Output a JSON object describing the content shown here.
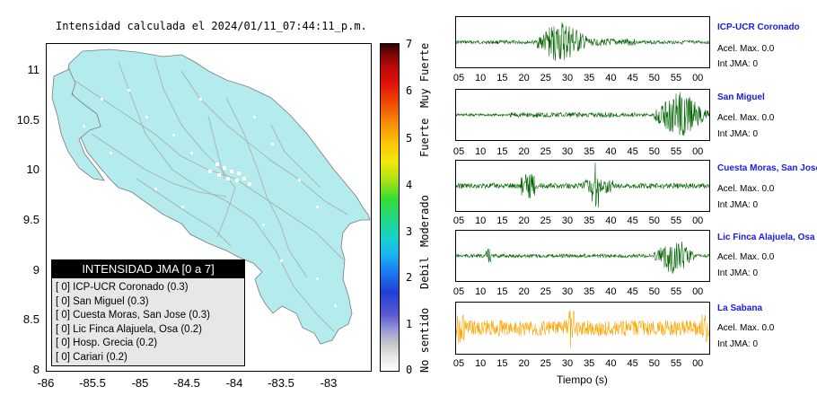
{
  "map": {
    "title": "Intensidad calculada el 2024/01/11_07:44:11_p.m.",
    "lat_labels": [
      "11",
      "10.5",
      "10",
      "9.5",
      "9",
      "8.5",
      "8"
    ],
    "lon_labels": [
      "-86",
      "-85.5",
      "-85",
      "-84.5",
      "-84",
      "-83.5",
      "-83"
    ],
    "land_color": "#b4ecee"
  },
  "scale": {
    "numbers": [
      "7",
      "6",
      "5",
      "4",
      "3",
      "2",
      "1",
      "0"
    ],
    "words": [
      "Muy Fuerte",
      "Fuerte",
      "Moderado",
      "Debil",
      "No sentido"
    ]
  },
  "legend": {
    "title": "INTENSIDAD JMA [0 a 7]",
    "items": [
      "[ 0] ICP-UCR Coronado (0.3)",
      "[ 0] San Miguel (0.3)",
      "[ 0] Cuesta Moras, San Jose (0.3)",
      "[ 0] Lic Finca Alajuela, Osa (0.2)",
      "[ 0] Hosp. Grecia (0.2)",
      "[ 0] Cariari (0.2)"
    ]
  },
  "time_ticks": [
    "05",
    "10",
    "15",
    "20",
    "25",
    "30",
    "35",
    "40",
    "45",
    "50",
    "55",
    "00"
  ],
  "xaxis_label": "Tiempo (s)",
  "stations": [
    {
      "name": "ICP-UCR Coronado",
      "acel": "Acel. Max. 0.0",
      "int": "Int JMA: 0",
      "color": "#006400"
    },
    {
      "name": "San Miguel",
      "acel": "Acel. Max. 0.0",
      "int": "Int JMA: 0",
      "color": "#006400"
    },
    {
      "name": "Cuesta Moras, San Jose",
      "acel": "Acel. Max. 0.0",
      "int": "Int JMA: 0",
      "color": "#006400"
    },
    {
      "name": "Lic Finca Alajuela, Osa",
      "acel": "Acel. Max. 0.0",
      "int": "Int JMA: 0",
      "color": "#006400"
    },
    {
      "name": "La Sabana",
      "acel": "Acel. Max. 0.0",
      "int": "Int JMA: 0",
      "color": "#ffa500"
    }
  ]
}
